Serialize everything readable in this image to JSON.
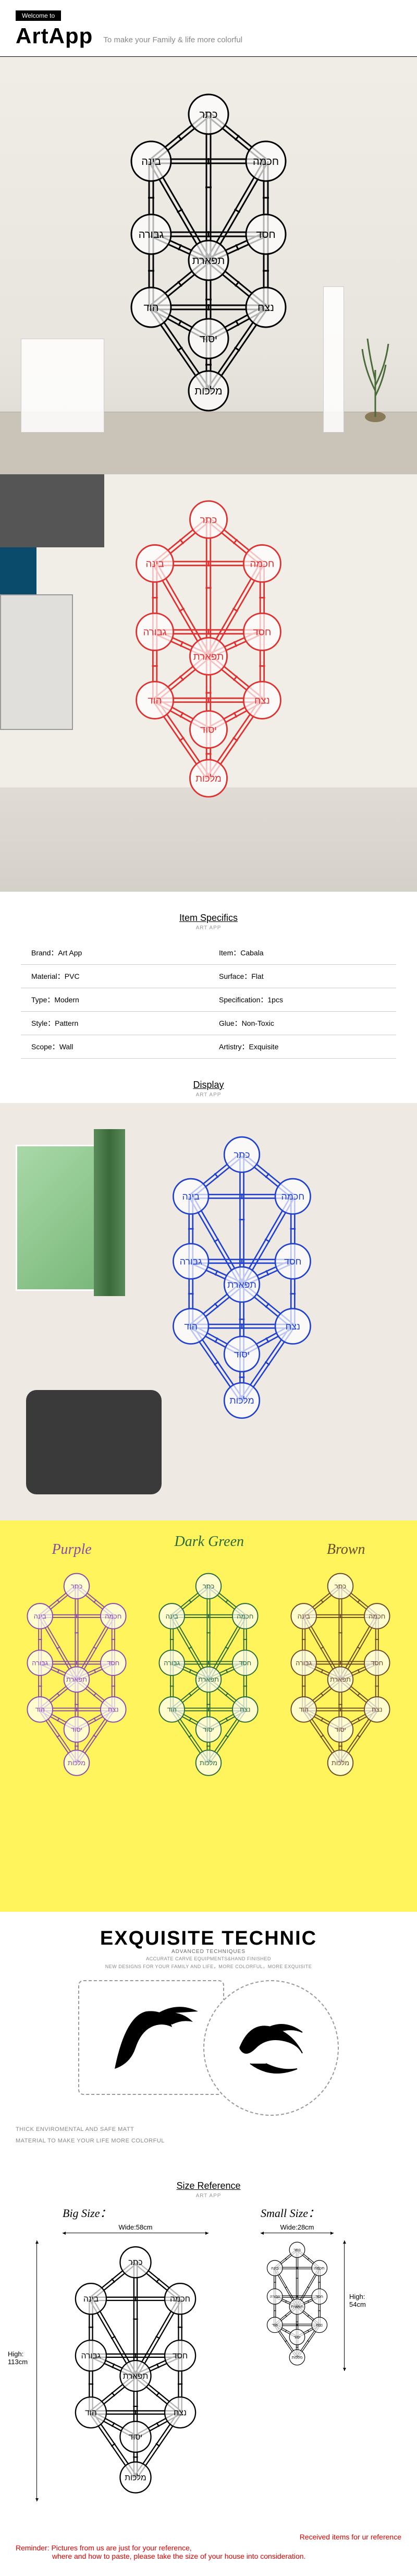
{
  "header": {
    "welcome": "Welcome to",
    "brand": "ArtApp",
    "tagline": "To make your Family & life more colorful"
  },
  "tree_colors": {
    "black": "#000000",
    "red": "#e03030",
    "blue": "#2040d0",
    "purple": "#8a4aa8",
    "dark_green": "#2a6a3a",
    "brown": "#6a4a2a"
  },
  "tree_nodes": [
    "כתר",
    "חכמה",
    "בינה",
    "חסד",
    "גבורה",
    "תפארת",
    "נצח",
    "הוד",
    "יסוד",
    "מלכות"
  ],
  "sections": {
    "specs": {
      "title": "Item Specifics",
      "sub": "ART APP"
    },
    "display": {
      "title": "Display",
      "sub": "ART APP"
    },
    "size": {
      "title": "Size Reference",
      "sub": "ART APP"
    }
  },
  "specs": [
    {
      "k": "Brand：",
      "v": "Art App"
    },
    {
      "k": "Item：",
      "v": "Cabala"
    },
    {
      "k": "Material：",
      "v": "PVC"
    },
    {
      "k": "Surface：",
      "v": "Flat"
    },
    {
      "k": "Type：",
      "v": "Modern"
    },
    {
      "k": "Specification：",
      "v": "1pcs"
    },
    {
      "k": "Style：",
      "v": "Pattern"
    },
    {
      "k": "Glue：",
      "v": "Non-Toxic"
    },
    {
      "k": "Scope：",
      "v": "Wall"
    },
    {
      "k": "Artistry：",
      "v": "Exquisite"
    }
  ],
  "variants": {
    "purple": "Purple",
    "green": "Dark Green",
    "brown": "Brown"
  },
  "technic": {
    "title": "EXQUISITE TECHNIC",
    "sub": "ADVANCED TECHNIQUES",
    "desc1": "ACCURATE CARVE EQUIPMENTS&HAND FINISHED",
    "desc2": "NEW DESIGNS FOR YOUR FAMILY AND LIFE，MORE COLORFUL，MORE EXQUISITE",
    "footer1": "THICK ENVIROMENTAL AND SAFE MATT",
    "footer2": "MATERIAL TO MAKE YOUR LIFE MORE COLORFUL"
  },
  "sizes": {
    "big": {
      "label": "Big Size：",
      "width_label": "Wide:58cm",
      "height_label": "High:\n113cm"
    },
    "small": {
      "label": "Small Size：",
      "width_label": "Wide:28cm",
      "height_label": "High:\n54cm"
    }
  },
  "reminder": {
    "ref": "Received items for ur reference",
    "line1": "Reminder:  Pictures from us are just for your reference,",
    "line2": "where and how to paste, please take the size of your house into consideration."
  }
}
